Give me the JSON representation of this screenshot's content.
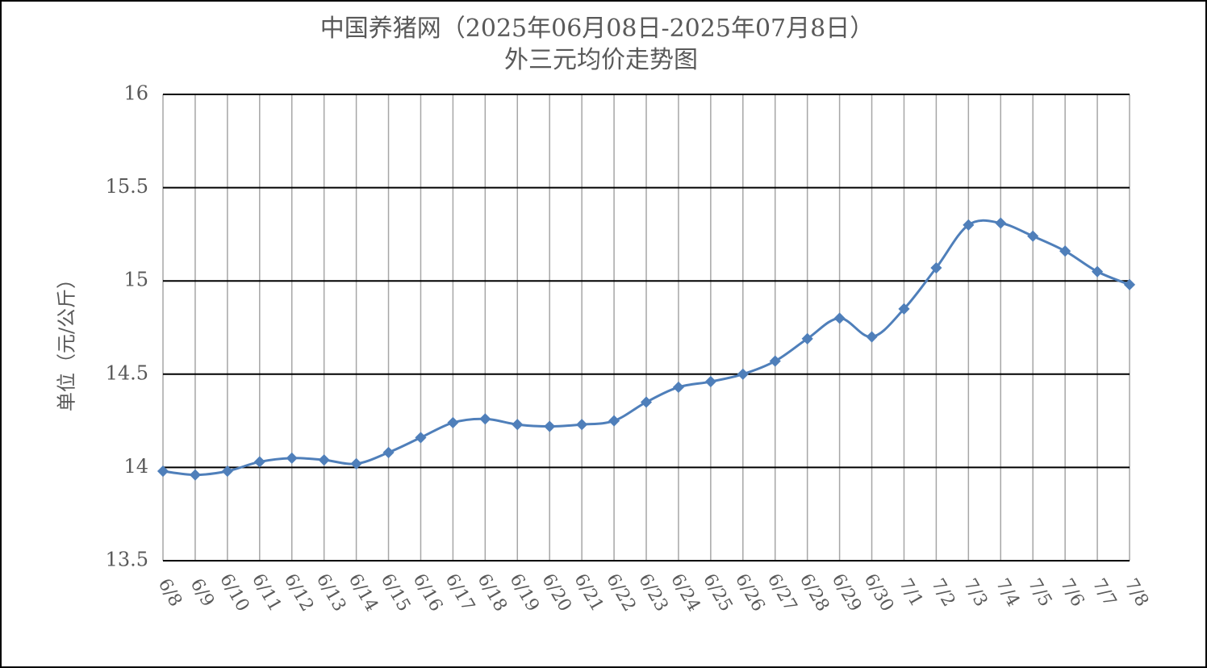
{
  "chart_data": {
    "type": "line",
    "title": [
      "中国养猪网（2025年06月08日-2025年07月8日）",
      "外三元均价走势图"
    ],
    "y_label": "单位（元/公斤）",
    "categories": [
      "6/8",
      "6/9",
      "6/10",
      "6/11",
      "6/12",
      "6/13",
      "6/14",
      "6/15",
      "6/16",
      "6/17",
      "6/18",
      "6/19",
      "6/20",
      "6/21",
      "6/22",
      "6/23",
      "6/24",
      "6/25",
      "6/26",
      "6/27",
      "6/28",
      "6/29",
      "6/30",
      "7/1",
      "7/2",
      "7/3",
      "7/4",
      "7/5",
      "7/6",
      "7/7",
      "7/8"
    ],
    "series": [
      {
        "color": "#4f7fba",
        "values": [
          13.98,
          13.96,
          13.98,
          14.03,
          14.05,
          14.04,
          14.02,
          14.08,
          14.16,
          14.24,
          14.26,
          14.23,
          14.22,
          14.23,
          14.25,
          14.35,
          14.43,
          14.46,
          14.5,
          14.57,
          14.69,
          14.8,
          14.7,
          14.85,
          15.07,
          15.3,
          15.31,
          15.24,
          15.16,
          15.05,
          14.98
        ]
      }
    ],
    "ylim": [
      13.5,
      16
    ],
    "yticks": [
      13.5,
      14,
      14.5,
      15,
      15.5,
      16
    ],
    "grid": true,
    "smooth": true
  }
}
